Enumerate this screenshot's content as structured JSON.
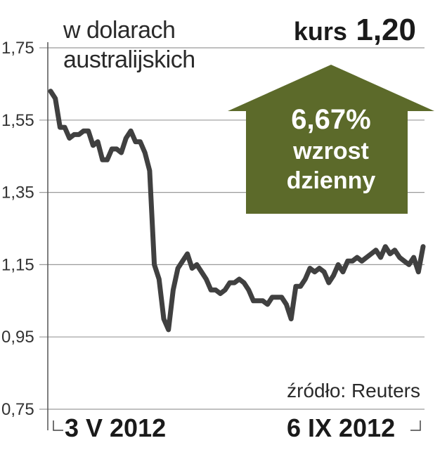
{
  "header": {
    "unit_label": "w dolarach\naustralijskich",
    "kurs_label": "kurs",
    "kurs_value": "1,20"
  },
  "badge": {
    "percent": "6,67%",
    "line1": "wzrost",
    "line2": "dzienny",
    "color": "#5c6a2a"
  },
  "source": "źródło: Reuters",
  "chart_data": {
    "type": "line",
    "title": "",
    "xlabel": "",
    "ylabel": "",
    "ylim": [
      0.75,
      1.75
    ],
    "grid": true,
    "y_ticks": [
      "1,75",
      "1,55",
      "1,35",
      "1,15",
      "0,95",
      "0,75"
    ],
    "x_range_labels": [
      "3 V 2012",
      "6 IX 2012"
    ],
    "line_color": "#404040",
    "series": [
      {
        "name": "",
        "values": [
          1.63,
          1.61,
          1.53,
          1.53,
          1.5,
          1.51,
          1.51,
          1.52,
          1.52,
          1.48,
          1.49,
          1.44,
          1.44,
          1.47,
          1.47,
          1.46,
          1.5,
          1.52,
          1.49,
          1.49,
          1.46,
          1.41,
          1.15,
          1.11,
          1.0,
          0.97,
          1.08,
          1.14,
          1.16,
          1.18,
          1.14,
          1.15,
          1.13,
          1.11,
          1.08,
          1.08,
          1.07,
          1.08,
          1.1,
          1.1,
          1.11,
          1.1,
          1.08,
          1.05,
          1.05,
          1.05,
          1.04,
          1.06,
          1.06,
          1.06,
          1.04,
          1.0,
          1.09,
          1.09,
          1.11,
          1.14,
          1.13,
          1.14,
          1.13,
          1.1,
          1.12,
          1.15,
          1.13,
          1.16,
          1.16,
          1.17,
          1.16,
          1.17,
          1.18,
          1.19,
          1.17,
          1.2,
          1.18,
          1.19,
          1.17,
          1.16,
          1.15,
          1.17,
          1.13,
          1.2
        ]
      }
    ]
  }
}
